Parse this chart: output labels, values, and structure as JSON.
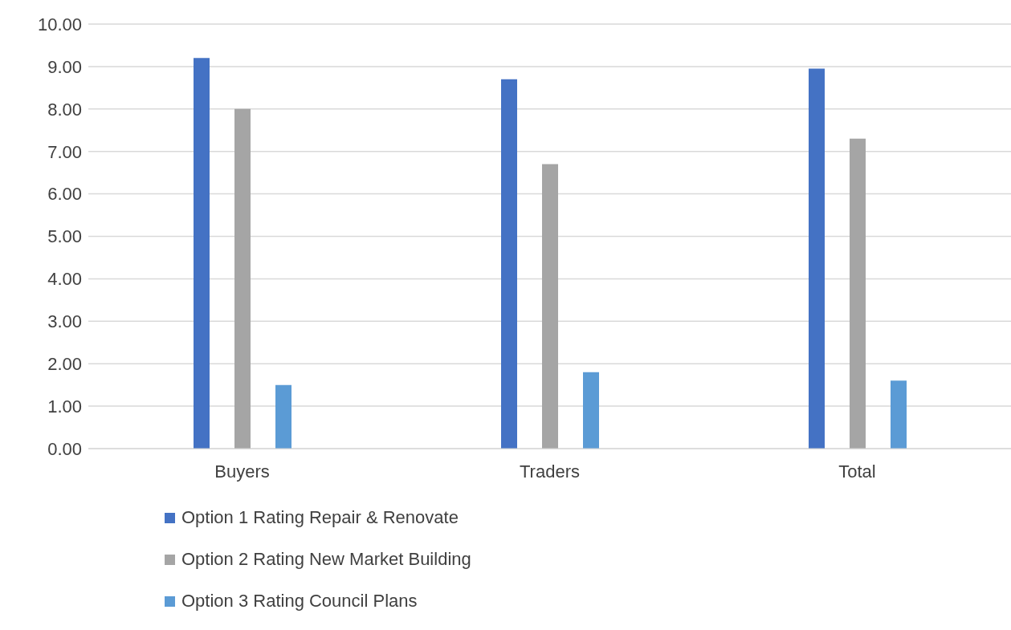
{
  "chart_data": {
    "type": "bar",
    "categories": [
      "Buyers",
      "Traders",
      "Total"
    ],
    "series": [
      {
        "name": "Option 1 Rating Repair & Renovate",
        "color": "#4472c4",
        "values": [
          9.2,
          8.7,
          8.95
        ]
      },
      {
        "name": "Option 2 Rating New Market Building",
        "color": "#a5a5a5",
        "values": [
          8.0,
          6.7,
          7.3
        ]
      },
      {
        "name": "Option 3 Rating Council Plans",
        "color": "#5b9bd5",
        "values": [
          1.5,
          1.8,
          1.6
        ]
      }
    ],
    "ylim": [
      0,
      10
    ],
    "yticks": [
      {
        "value": 0,
        "label": "0.00"
      },
      {
        "value": 1,
        "label": "1.00"
      },
      {
        "value": 2,
        "label": "2.00"
      },
      {
        "value": 3,
        "label": "3.00"
      },
      {
        "value": 4,
        "label": "4.00"
      },
      {
        "value": 5,
        "label": "5.00"
      },
      {
        "value": 6,
        "label": "6.00"
      },
      {
        "value": 7,
        "label": "7.00"
      },
      {
        "value": 8,
        "label": "8.00"
      },
      {
        "value": 9,
        "label": "9.00"
      },
      {
        "value": 10,
        "label": "10.00"
      }
    ],
    "grid": "y",
    "legend": "bottom"
  }
}
